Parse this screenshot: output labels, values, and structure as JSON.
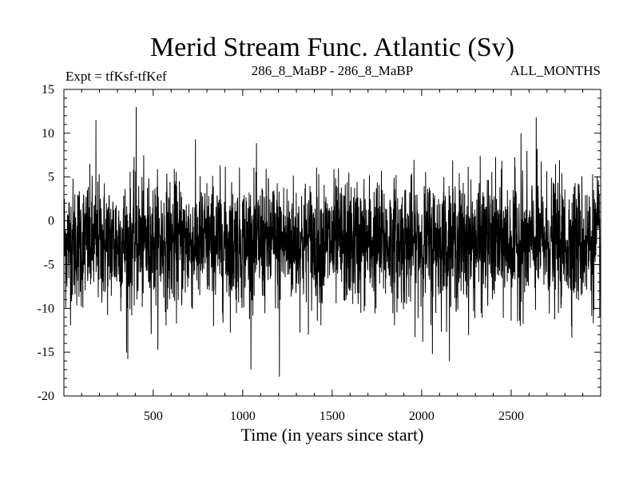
{
  "chart_data": {
    "type": "line",
    "title": "Merid Stream Func. Atlantic (Sv)",
    "subtitle_left": "Expt = tfKsf-tfKef",
    "subtitle_center": "286_8_MaBP - 286_8_MaBP",
    "subtitle_right": "ALL_MONTHS",
    "xlabel": "Time (in years since start)",
    "ylabel": "",
    "xlim": [
      1,
      3000
    ],
    "ylim": [
      -20,
      15
    ],
    "xticks": [
      500,
      1000,
      1500,
      2000,
      2500
    ],
    "xtick_labels": [
      "500",
      "1000",
      "1500",
      "2000",
      "2500"
    ],
    "yticks": [
      15,
      10,
      5,
      0,
      -5,
      -10,
      -15,
      -20
    ],
    "ytick_labels": [
      "15",
      "10",
      "5",
      "0",
      "-5",
      "-10",
      "-15",
      "-20"
    ],
    "series": [
      {
        "name": "Merid Stream Func. Atlantic",
        "x_start": 1,
        "x_end": 3000,
        "n_points": 3000,
        "mean": -2.5,
        "std": 3.6,
        "min": -17.8,
        "max": 13.0,
        "notable_points": [
          {
            "x": 180,
            "y": 11.5
          },
          {
            "x": 405,
            "y": 13.0
          },
          {
            "x": 1205,
            "y": -17.8
          },
          {
            "x": 358,
            "y": -15.8
          },
          {
            "x": 2640,
            "y": 11.8
          },
          {
            "x": 2060,
            "y": -15.2
          },
          {
            "x": 2555,
            "y": 10.0
          }
        ]
      }
    ],
    "grid": false,
    "line_color": "#000000"
  }
}
